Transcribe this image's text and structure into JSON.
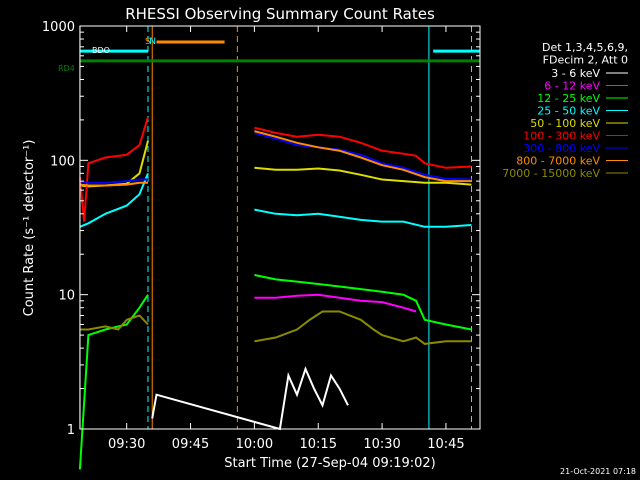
{
  "chart_data": {
    "type": "line",
    "title": "RHESSI Observing Summary Count Rates",
    "xlabel": "Start Time (27-Sep-04 09:19:02)",
    "ylabel": "Count Rate (s⁻¹ detector⁻¹)",
    "y_scale": "log",
    "ylim": [
      1,
      1000
    ],
    "xlim": [
      "09:19:02",
      "10:53:00"
    ],
    "x_ticks": [
      "09:30",
      "09:45",
      "10:00",
      "10:15",
      "10:30",
      "10:45"
    ],
    "y_ticks": [
      "1",
      "10",
      "100",
      "1000"
    ],
    "legend": {
      "header_lines": [
        "Det 1,3,4,5,6,9,",
        "FDecim 2, Att 0"
      ],
      "placement": "right"
    },
    "series": [
      {
        "name": "3 - 6 keV",
        "color": "#ffffff",
        "points": [
          [
            "09:36",
            1.2
          ],
          [
            "09:37",
            1.8
          ],
          [
            "10:06",
            1
          ],
          [
            "10:08",
            2.5
          ],
          [
            "10:10",
            1.8
          ],
          [
            "10:12",
            2.8
          ],
          [
            "10:14",
            2
          ],
          [
            "10:16",
            1.5
          ],
          [
            "10:18",
            2.5
          ],
          [
            "10:20",
            2.0
          ],
          [
            "10:22",
            1.5
          ]
        ]
      },
      {
        "name": "6 - 12 keV",
        "color": "#ff00ff",
        "points": [
          [
            "10:00",
            9.5
          ],
          [
            "10:05",
            9.5
          ],
          [
            "10:10",
            9.8
          ],
          [
            "10:15",
            10
          ],
          [
            "10:20",
            9.5
          ],
          [
            "10:25",
            9
          ],
          [
            "10:30",
            8.8
          ],
          [
            "10:35",
            8.0
          ],
          [
            "10:38",
            7.5
          ]
        ]
      },
      {
        "name": "12 - 25 keV",
        "color": "#00ff00",
        "points": [
          [
            "09:19",
            0.5
          ],
          [
            "09:21",
            5
          ],
          [
            "09:25",
            5.5
          ],
          [
            "09:30",
            6
          ],
          [
            "09:33",
            8
          ],
          [
            "09:35",
            10
          ],
          [
            "10:00",
            14
          ],
          [
            "10:05",
            13
          ],
          [
            "10:10",
            12.5
          ],
          [
            "10:15",
            12
          ],
          [
            "10:20",
            11.5
          ],
          [
            "10:25",
            11
          ],
          [
            "10:30",
            10.5
          ],
          [
            "10:35",
            10
          ],
          [
            "10:38",
            9
          ],
          [
            "10:40",
            6.5
          ],
          [
            "10:45",
            6
          ],
          [
            "10:51",
            5.5
          ]
        ]
      },
      {
        "name": "25 - 50 keV",
        "color": "#00ffff",
        "points": [
          [
            "09:19",
            32
          ],
          [
            "09:21",
            34
          ],
          [
            "09:25",
            40
          ],
          [
            "09:30",
            46
          ],
          [
            "09:33",
            56
          ],
          [
            "09:35",
            80
          ],
          [
            "10:00",
            43
          ],
          [
            "10:05",
            40
          ],
          [
            "10:10",
            39
          ],
          [
            "10:15",
            40
          ],
          [
            "10:20",
            38
          ],
          [
            "10:25",
            36
          ],
          [
            "10:30",
            35
          ],
          [
            "10:35",
            35
          ],
          [
            "10:40",
            32
          ],
          [
            "10:45",
            32
          ],
          [
            "10:51",
            33
          ]
        ]
      },
      {
        "name": "50 - 100 keV",
        "color": "#dddd00",
        "points": [
          [
            "09:19",
            65
          ],
          [
            "09:21",
            64
          ],
          [
            "09:25",
            65
          ],
          [
            "09:30",
            67
          ],
          [
            "09:33",
            80
          ],
          [
            "09:35",
            140
          ],
          [
            "10:00",
            88
          ],
          [
            "10:05",
            85
          ],
          [
            "10:10",
            85
          ],
          [
            "10:15",
            87
          ],
          [
            "10:20",
            84
          ],
          [
            "10:25",
            78
          ],
          [
            "10:30",
            72
          ],
          [
            "10:35",
            70
          ],
          [
            "10:40",
            68
          ],
          [
            "10:45",
            68
          ],
          [
            "10:51",
            66
          ]
        ]
      },
      {
        "name": "100 - 300 keV",
        "color": "#ff0000",
        "points": [
          [
            "09:19",
            75
          ],
          [
            "09:20",
            35
          ],
          [
            "09:21",
            95
          ],
          [
            "09:25",
            105
          ],
          [
            "09:30",
            110
          ],
          [
            "09:33",
            130
          ],
          [
            "09:35",
            210
          ],
          [
            "10:00",
            175
          ],
          [
            "10:05",
            160
          ],
          [
            "10:10",
            150
          ],
          [
            "10:15",
            155
          ],
          [
            "10:20",
            150
          ],
          [
            "10:25",
            135
          ],
          [
            "10:30",
            118
          ],
          [
            "10:35",
            112
          ],
          [
            "10:38",
            108
          ],
          [
            "10:40",
            95
          ],
          [
            "10:45",
            88
          ],
          [
            "10:51",
            90
          ]
        ]
      },
      {
        "name": "300 - 800 keV",
        "color": "#0000ff",
        "points": [
          [
            "09:19",
            70
          ],
          [
            "09:21",
            68
          ],
          [
            "09:25",
            68
          ],
          [
            "09:30",
            70
          ],
          [
            "09:33",
            72
          ],
          [
            "09:35",
            72
          ],
          [
            "10:00",
            160
          ],
          [
            "10:05",
            145
          ],
          [
            "10:10",
            130
          ],
          [
            "10:15",
            125
          ],
          [
            "10:20",
            120
          ],
          [
            "10:25",
            110
          ],
          [
            "10:30",
            95
          ],
          [
            "10:35",
            88
          ],
          [
            "10:40",
            78
          ],
          [
            "10:45",
            73
          ],
          [
            "10:51",
            72
          ]
        ]
      },
      {
        "name": "800 - 7000 keV",
        "color": "#ff8c00",
        "points": [
          [
            "09:19",
            66
          ],
          [
            "09:21",
            65
          ],
          [
            "09:25",
            65
          ],
          [
            "09:30",
            66
          ],
          [
            "09:33",
            68
          ],
          [
            "09:35",
            68
          ],
          [
            "10:00",
            165
          ],
          [
            "10:05",
            150
          ],
          [
            "10:10",
            135
          ],
          [
            "10:15",
            125
          ],
          [
            "10:20",
            118
          ],
          [
            "10:25",
            105
          ],
          [
            "10:30",
            92
          ],
          [
            "10:35",
            85
          ],
          [
            "10:40",
            75
          ],
          [
            "10:45",
            70
          ],
          [
            "10:51",
            70
          ]
        ]
      },
      {
        "name": "7000 - 15000 keV",
        "color": "#8b8b00",
        "points": [
          [
            "09:19",
            5.5
          ],
          [
            "09:21",
            5.5
          ],
          [
            "09:25",
            5.8
          ],
          [
            "09:28",
            5.5
          ],
          [
            "09:30",
            6.5
          ],
          [
            "09:33",
            7
          ],
          [
            "09:35",
            6
          ],
          [
            "10:00",
            4.5
          ],
          [
            "10:05",
            4.8
          ],
          [
            "10:10",
            5.5
          ],
          [
            "10:13",
            6.5
          ],
          [
            "10:16",
            7.5
          ],
          [
            "10:20",
            7.5
          ],
          [
            "10:25",
            6.5
          ],
          [
            "10:28",
            5.5
          ],
          [
            "10:30",
            5
          ],
          [
            "10:35",
            4.5
          ],
          [
            "10:38",
            4.8
          ],
          [
            "10:40",
            4.3
          ],
          [
            "10:45",
            4.5
          ],
          [
            "10:51",
            4.5
          ]
        ]
      }
    ],
    "state_bars": [
      {
        "label": "RD4",
        "color": "#008000",
        "from": "09:19",
        "to": "10:53",
        "y": 550
      },
      {
        "label": "BDO",
        "color": "#00ffff",
        "from": "09:19",
        "to": "09:35",
        "y": 650
      },
      {
        "label": "",
        "color": "#00ffff",
        "from": "10:42",
        "to": "10:53",
        "y": 650
      },
      {
        "label": "",
        "color": "#ff8c00",
        "from": "09:37",
        "to": "09:53",
        "y": 760
      }
    ],
    "flag_letters": [
      {
        "text": "S",
        "time": "09:35",
        "color": "#ff8c00"
      },
      {
        "text": "N",
        "time": "09:36",
        "color": "#00ffff"
      }
    ],
    "vertical_markers": [
      {
        "time": "09:19",
        "color": "#00ffff",
        "style": "solid"
      },
      {
        "time": "09:35",
        "color": "#00ffff",
        "style": "dashed"
      },
      {
        "time": "09:36",
        "color": "#ff8c00",
        "style": "solid"
      },
      {
        "time": "09:56",
        "color": "#ff8c00",
        "style": "dashed"
      },
      {
        "time": "10:41",
        "color": "#00ffff",
        "style": "solid"
      },
      {
        "time": "10:51",
        "color": "#00ffff",
        "style": "dashed"
      }
    ],
    "gap": [
      "09:37",
      "09:59"
    ]
  },
  "footer_stamp": "21-Oct-2021 07:18"
}
